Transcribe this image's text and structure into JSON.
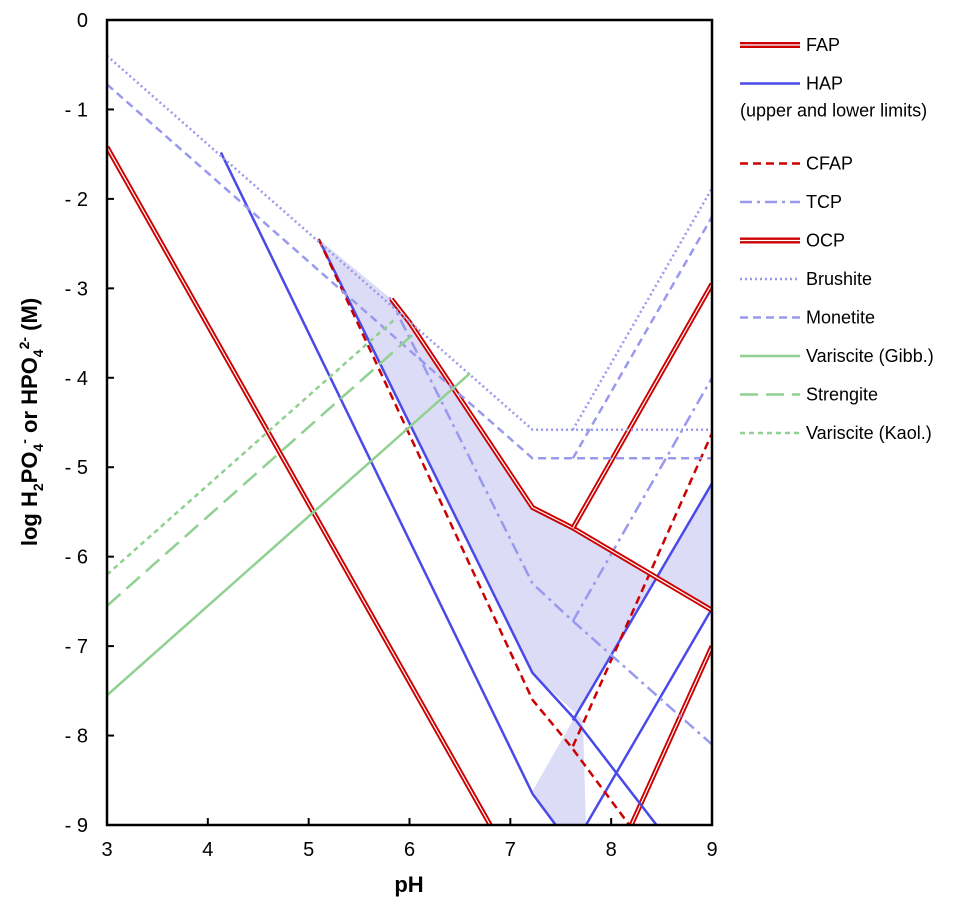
{
  "chart_data": {
    "type": "line",
    "title": "",
    "xlabel": "pH",
    "ylabel_parts": [
      "log H",
      "2",
      "PO",
      "4",
      "-",
      " or HPO",
      "4",
      "2-",
      " (M)"
    ],
    "xlim": [
      3,
      9
    ],
    "ylim": [
      -9,
      0
    ],
    "x_ticks": [
      "3",
      "4",
      "5",
      "6",
      "7",
      "8",
      "9"
    ],
    "y_ticks": [
      "0",
      "- 1",
      "- 2",
      "- 3",
      "- 4",
      "- 5",
      "- 6",
      "- 7",
      "- 8",
      "- 9"
    ],
    "grid": false,
    "legend_position": "right",
    "shaded_region": {
      "name": "HAP range",
      "color": "#dcdcf7",
      "polygon": [
        [
          4.13,
          -1.48
        ],
        [
          5.1,
          -2.45
        ],
        [
          5.82,
          -3.12
        ],
        [
          6.0,
          -3.38
        ],
        [
          7.22,
          -5.45
        ],
        [
          7.62,
          -5.68
        ],
        [
          9.0,
          -6.58
        ],
        [
          9.0,
          -5.18
        ],
        [
          7.62,
          -7.83
        ],
        [
          7.22,
          -8.62
        ],
        [
          7.45,
          -9.0
        ],
        [
          7.75,
          -9.0
        ],
        [
          7.72,
          -7.83
        ],
        [
          7.22,
          -7.3
        ],
        [
          5.1,
          -2.45
        ]
      ]
    },
    "series": [
      {
        "name": "FAP",
        "color": "#cc0000",
        "style": "double",
        "segments": [
          [
            [
              3.0,
              -1.42
            ],
            [
              6.8,
              -9.0
            ]
          ],
          [
            [
              8.2,
              -9.0
            ],
            [
              9.0,
              -7.0
            ]
          ]
        ]
      },
      {
        "name": "HAP",
        "name_line2": "(upper and lower limits)",
        "color": "#4a4ae8",
        "style": "solid",
        "segments": [
          [
            [
              4.13,
              -1.48
            ],
            [
              7.22,
              -8.65
            ],
            [
              7.45,
              -9.0
            ]
          ],
          [
            [
              5.1,
              -2.45
            ],
            [
              7.22,
              -7.3
            ],
            [
              7.65,
              -7.83
            ],
            [
              8.45,
              -9.0
            ]
          ],
          [
            [
              7.75,
              -9.0
            ],
            [
              9.0,
              -6.58
            ]
          ],
          [
            [
              7.62,
              -7.83
            ],
            [
              9.0,
              -5.18
            ]
          ]
        ]
      },
      {
        "name": "CFAP",
        "color": "#cc0000",
        "style": "dashed",
        "segments": [
          [
            [
              5.1,
              -2.45
            ],
            [
              7.22,
              -7.6
            ],
            [
              7.6,
              -8.12
            ],
            [
              8.18,
              -9.0
            ]
          ],
          [
            [
              7.62,
              -8.12
            ],
            [
              9.0,
              -4.62
            ]
          ]
        ]
      },
      {
        "name": "TCP",
        "color": "#9999ee",
        "style": "dashdot",
        "segments": [
          [
            [
              5.8,
              -3.1
            ],
            [
              7.22,
              -6.3
            ],
            [
              7.62,
              -6.72
            ],
            [
              9.0,
              -8.1
            ]
          ],
          [
            [
              7.62,
              -6.72
            ],
            [
              9.0,
              -4.0
            ]
          ]
        ]
      },
      {
        "name": "OCP",
        "color": "#cc0000",
        "style": "double",
        "segments": [
          [
            [
              5.82,
              -3.12
            ],
            [
              6.0,
              -3.38
            ],
            [
              7.22,
              -5.45
            ],
            [
              7.62,
              -5.68
            ],
            [
              9.0,
              -6.6
            ]
          ],
          [
            [
              7.62,
              -5.68
            ],
            [
              9.0,
              -2.95
            ]
          ]
        ]
      },
      {
        "name": "Brushite",
        "color": "#9999ee",
        "style": "dotted",
        "segments": [
          [
            [
              3.0,
              -0.4
            ],
            [
              7.22,
              -4.58
            ],
            [
              7.62,
              -4.58
            ],
            [
              9.0,
              -4.58
            ]
          ],
          [
            [
              7.62,
              -4.58
            ],
            [
              9.0,
              -1.88
            ]
          ]
        ]
      },
      {
        "name": "Monetite",
        "color": "#9999ee",
        "style": "dashed",
        "segments": [
          [
            [
              3.0,
              -0.72
            ],
            [
              7.22,
              -4.9
            ],
            [
              7.62,
              -4.9
            ],
            [
              9.0,
              -4.9
            ]
          ],
          [
            [
              7.62,
              -4.9
            ],
            [
              9.0,
              -2.2
            ]
          ]
        ]
      },
      {
        "name": "Variscite (Gibb.)",
        "color": "#90d090",
        "style": "solid",
        "segments": [
          [
            [
              3.0,
              -7.55
            ],
            [
              6.6,
              -3.95
            ]
          ]
        ]
      },
      {
        "name": "Strengite",
        "color": "#90d090",
        "style": "longdash",
        "segments": [
          [
            [
              3.0,
              -6.55
            ],
            [
              6.05,
              -3.5
            ]
          ]
        ]
      },
      {
        "name": "Variscite (Kaol.)",
        "color": "#90d090",
        "style": "shortdash",
        "segments": [
          [
            [
              3.0,
              -6.2
            ],
            [
              5.85,
              -3.35
            ]
          ]
        ]
      }
    ]
  }
}
